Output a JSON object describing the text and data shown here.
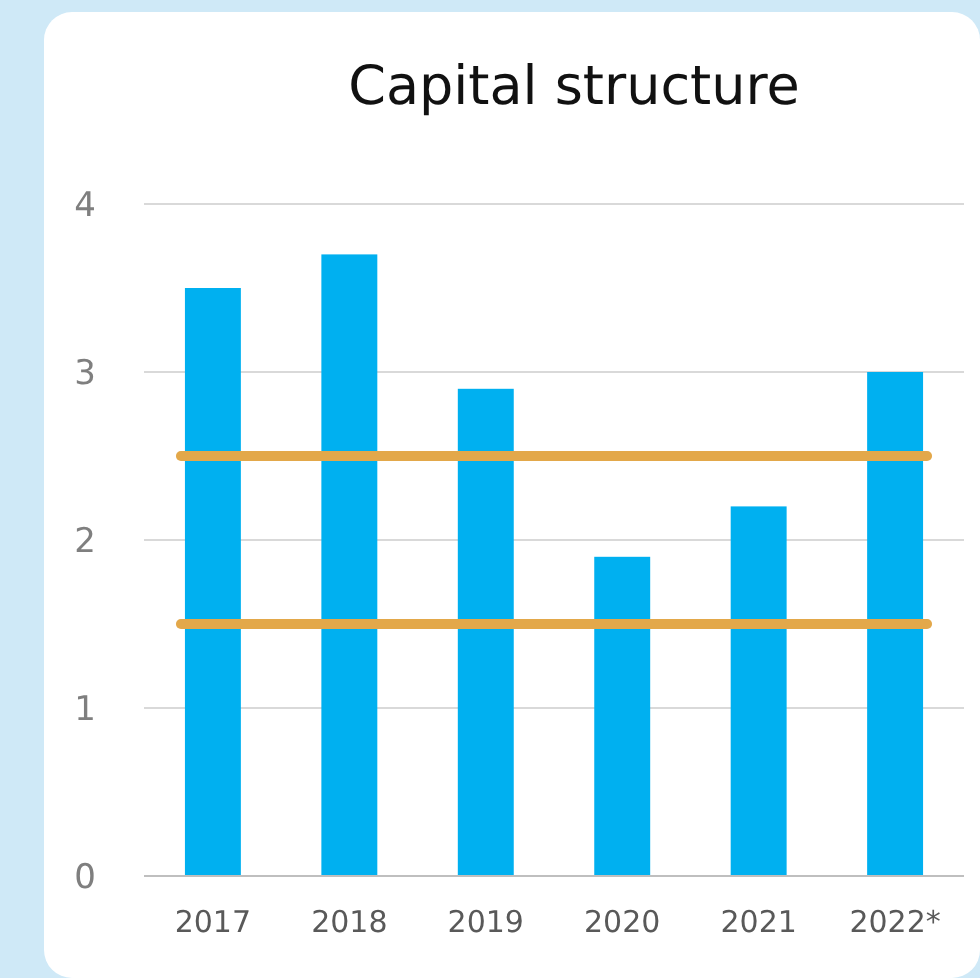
{
  "chart_data": {
    "type": "bar",
    "title": "Capital structure",
    "categories": [
      "2017",
      "2018",
      "2019",
      "2020",
      "2021",
      "2022*"
    ],
    "values": [
      3.5,
      3.7,
      2.9,
      1.9,
      2.2,
      3.0
    ],
    "color": "#00b0f0",
    "ylim": [
      0,
      4
    ],
    "yticks": [
      0,
      1,
      2,
      3,
      4
    ],
    "grid": "y",
    "ref_lines": [
      {
        "axis": "y",
        "value": 2.5,
        "color": "#e3a84a"
      },
      {
        "axis": "y",
        "value": 1.5,
        "color": "#e3a84a"
      }
    ]
  }
}
